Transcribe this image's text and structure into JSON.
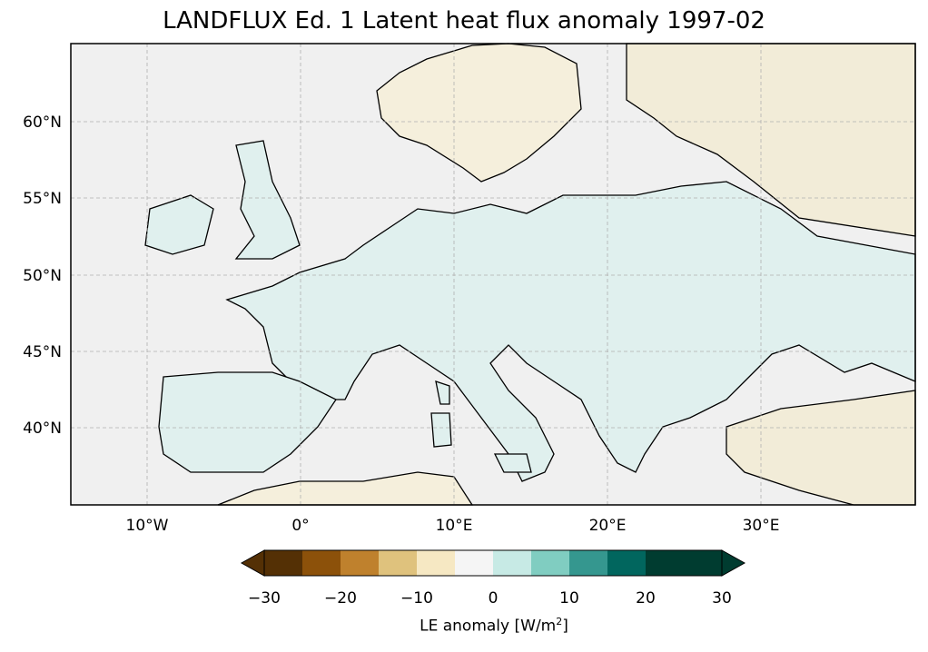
{
  "title": "LANDFLUX Ed. 1 Latent heat flux anomaly 1997-02",
  "map": {
    "lon_ticks": [
      "10°W",
      "0°",
      "10°E",
      "20°E",
      "30°E"
    ],
    "lat_ticks": [
      "60°N",
      "55°N",
      "50°N",
      "45°N",
      "40°N"
    ],
    "colors": {
      "ocean": "#f0f0f0",
      "land_pos": "#e0f0ee",
      "land_neg": "#f5efdc",
      "coast": "#000000",
      "grid": "#b0b0b0"
    }
  },
  "colorbar": {
    "colors": [
      "#543005",
      "#8c510a",
      "#bf812d",
      "#dfc27d",
      "#f6e8c3",
      "#f5f5f5",
      "#c7eae5",
      "#80cdc1",
      "#35978f",
      "#01665e",
      "#003c30",
      "#003c30"
    ],
    "tick_labels": [
      "−30",
      "−20",
      "−10",
      "0",
      "10",
      "20",
      "30"
    ],
    "label": "LE anomaly [W/m",
    "label_sup": "2",
    "label_end": "]"
  }
}
